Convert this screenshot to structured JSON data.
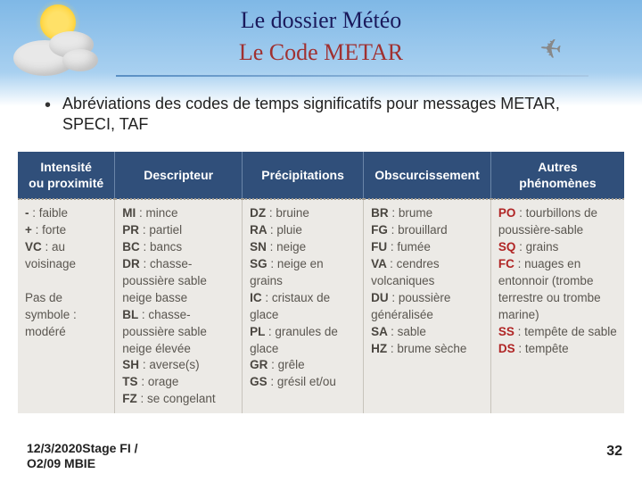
{
  "header": {
    "title1": "Le dossier Météo",
    "title2": "Le Code METAR"
  },
  "bullet": "Abréviations des codes de temps significatifs pour messages METAR, SPECI, TAF",
  "table": {
    "header_bg": "#304f7a",
    "header_color": "#ffffff",
    "body_bg": "#eceae6",
    "border_color": "#c8c4bc",
    "dotted_color": "#a09a90",
    "red_code_color": "#b02525",
    "columns": [
      "Intensité\nou proximité",
      "Descripteur",
      "Précipitations",
      "Obscurcissement",
      "Autres\nphénomènes"
    ],
    "col_widths": [
      "16%",
      "21%",
      "20%",
      "21%",
      "22%"
    ],
    "cells": {
      "intensity": [
        {
          "code": "-",
          "label": ": faible",
          "red": false
        },
        {
          "code": "+",
          "label": ": forte",
          "red": false
        },
        {
          "code": "VC",
          "label": ": au voisinage",
          "red": false
        },
        {
          "blank": true
        },
        {
          "text": "Pas de symbole : modéré"
        }
      ],
      "descriptor": [
        {
          "code": "MI",
          "label": ": mince"
        },
        {
          "code": "PR",
          "label": ": partiel"
        },
        {
          "code": "BC",
          "label": ": bancs"
        },
        {
          "code": "DR",
          "label": ": chasse-poussière sable neige basse"
        },
        {
          "code": "BL",
          "label": ": chasse-poussière sable neige élevée"
        },
        {
          "code": "SH",
          "label": ": averse(s)"
        },
        {
          "code": "TS",
          "label": ": orage"
        },
        {
          "code": "FZ",
          "label": ": se congelant"
        }
      ],
      "precipitation": [
        {
          "code": "DZ",
          "label": ": bruine"
        },
        {
          "code": "RA",
          "label": ": pluie"
        },
        {
          "code": "SN",
          "label": ": neige"
        },
        {
          "code": "SG",
          "label": ": neige en grains"
        },
        {
          "code": "IC",
          "label": ": cristaux de glace"
        },
        {
          "code": "PL",
          "label": ": granules de glace"
        },
        {
          "code": "GR",
          "label": ": grêle"
        },
        {
          "code": "GS",
          "label": ": grésil et/ou"
        }
      ],
      "obscuration": [
        {
          "code": "BR",
          "label": ": brume"
        },
        {
          "code": "FG",
          "label": ": brouillard"
        },
        {
          "code": "FU",
          "label": ": fumée"
        },
        {
          "code": "VA",
          "label": ": cendres volcaniques"
        },
        {
          "code": "DU",
          "label": ": poussière généralisée"
        },
        {
          "code": "SA",
          "label": ": sable"
        },
        {
          "code": "HZ",
          "label": ": brume sèche"
        }
      ],
      "other": [
        {
          "code": "PO",
          "label": ": tourbillons de poussière-sable",
          "red": true
        },
        {
          "code": "SQ",
          "label": ": grains",
          "red": true
        },
        {
          "code": "FC",
          "label": ": nuages en entonnoir (trombe terrestre ou trombe marine)",
          "red": true
        },
        {
          "code": "SS",
          "label": ": tempête de sable",
          "red": true
        },
        {
          "code": "DS",
          "label": ": tempête",
          "red": true
        }
      ]
    }
  },
  "footer": {
    "left_line1": "12/3/2020Stage FI /",
    "left_line2": "O2/09 MBIE",
    "page": "32"
  }
}
